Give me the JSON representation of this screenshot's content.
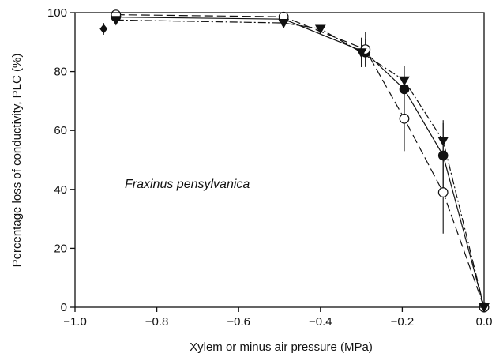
{
  "chart_data": {
    "type": "line",
    "title": "",
    "xlabel": "Xylem or  minus air pressure (MPa)",
    "ylabel": "Percentage loss of conductivity, PLC (%)",
    "xlim": [
      -1.0,
      0.0
    ],
    "ylim": [
      0,
      100
    ],
    "x_ticks": [
      -1.0,
      -0.8,
      -0.6,
      -0.4,
      -0.2,
      0.0
    ],
    "x_tick_labels": [
      "−1.0",
      "−0.8",
      "−0.6",
      "−0.4",
      "−0.2",
      "0.0"
    ],
    "y_ticks": [
      0,
      20,
      40,
      60,
      80,
      100
    ],
    "y_tick_labels": [
      "0",
      "20",
      "40",
      "60",
      "80",
      "100"
    ],
    "grid": false,
    "annotation": "Fraxinus pensylvanica",
    "series": [
      {
        "marker": "filled-circle",
        "line": "solid",
        "color": "#111111",
        "x": [
          -0.9,
          -0.49,
          -0.29,
          -0.195,
          -0.1,
          0.0
        ],
        "y": [
          98.5,
          97.8,
          86.5,
          74,
          51.5,
          0
        ],
        "err": [
          0,
          0,
          4.5,
          8,
          11,
          0
        ]
      },
      {
        "marker": "open-circle",
        "line": "dashed",
        "color": "#111111",
        "x": [
          -0.9,
          -0.49,
          -0.29,
          -0.195,
          -0.1,
          0.0
        ],
        "y": [
          99.3,
          98.6,
          87.5,
          64,
          39,
          0
        ],
        "err": [
          0,
          0,
          6,
          11,
          14,
          0
        ]
      },
      {
        "marker": "filled-triangle-down",
        "line": "dash-dot",
        "color": "#111111",
        "x": [
          -0.9,
          -0.49,
          -0.4,
          -0.3,
          -0.195,
          -0.1,
          0.0
        ],
        "y": [
          97.5,
          96.5,
          94.5,
          86.5,
          77,
          56.5,
          0
        ],
        "err": [
          0,
          0,
          0,
          5,
          5,
          7,
          0
        ]
      },
      {
        "marker": "filled-diamond",
        "line": "none",
        "color": "#111111",
        "x": [
          -0.93
        ],
        "y": [
          94.5
        ],
        "err": [
          2
        ]
      }
    ]
  }
}
